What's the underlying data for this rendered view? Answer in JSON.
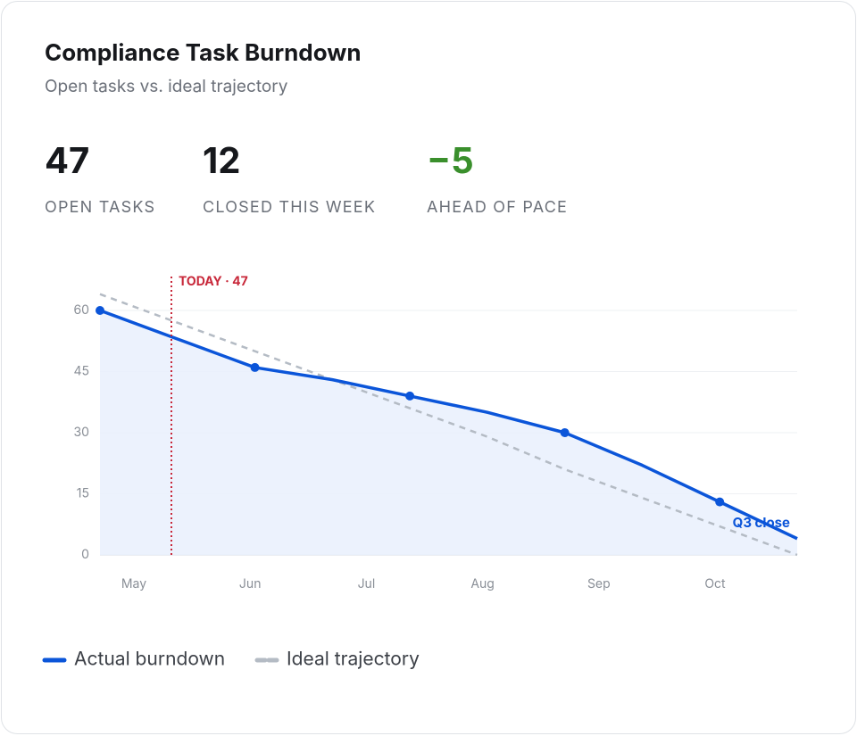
{
  "header": {
    "title": "Compliance Task Burndown",
    "subtitle": "Open tasks vs. ideal trajectory"
  },
  "kpis": [
    {
      "value": "47",
      "label": "OPEN TASKS"
    },
    {
      "value": "12",
      "label": "CLOSED THIS WEEK"
    },
    {
      "value": "−5",
      "label": "AHEAD OF PACE",
      "color": "#3a8f2c"
    }
  ],
  "chart_data": {
    "type": "line",
    "x_axis_labels": [
      "May",
      "Jun",
      "Jul",
      "Aug",
      "Sep",
      "Oct"
    ],
    "series": [
      {
        "name": "Actual burndown",
        "color": "#0b55d9",
        "values": [
          60,
          53,
          46,
          43,
          39,
          35,
          30,
          22,
          13,
          4
        ]
      },
      {
        "name": "Ideal trajectory",
        "color": "#b4bbc4",
        "dashed": true,
        "values": [
          64,
          57,
          50,
          43,
          36,
          29,
          21,
          14,
          7,
          0
        ]
      }
    ],
    "ylim": [
      0,
      64
    ],
    "yticks": [
      0,
      15,
      30,
      45,
      60
    ],
    "grid": true,
    "annotations": {
      "today": "TODAY · 47",
      "end": "Q3 close"
    }
  }
}
